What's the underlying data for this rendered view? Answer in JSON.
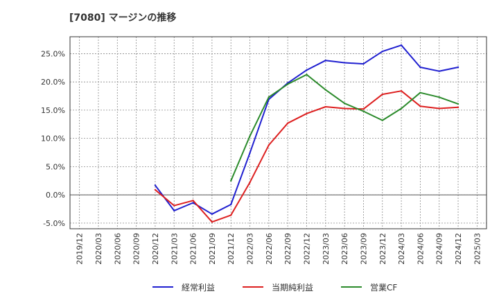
{
  "title": "[7080]  マージンの推移",
  "chart_data": {
    "type": "line",
    "title": "[7080]  マージンの推移",
    "x": [
      "2019/12",
      "2020/03",
      "2020/06",
      "2020/09",
      "2020/12",
      "2021/03",
      "2021/06",
      "2021/09",
      "2021/12",
      "2022/03",
      "2022/06",
      "2022/09",
      "2022/12",
      "2023/03",
      "2023/06",
      "2023/09",
      "2023/12",
      "2024/03",
      "2024/06",
      "2024/09",
      "2024/12",
      "2025/03"
    ],
    "yticks": [
      "-5.0%",
      "0.0%",
      "5.0%",
      "10.0%",
      "15.0%",
      "20.0%",
      "25.0%"
    ],
    "ylim": [
      -6,
      28
    ],
    "grid": true,
    "legend_position": "bottom",
    "series": [
      {
        "name": "経常利益",
        "color": "#1f1fd0",
        "values": [
          null,
          null,
          null,
          null,
          1.7,
          -2.8,
          -1.4,
          -3.4,
          -1.7,
          7.4,
          16.9,
          19.8,
          22.1,
          23.8,
          23.4,
          23.2,
          25.4,
          26.5,
          22.6,
          21.9,
          22.6,
          null
        ]
      },
      {
        "name": "当期純利益",
        "color": "#dd1f1f",
        "values": [
          null,
          null,
          null,
          null,
          0.9,
          -1.9,
          -1.0,
          -4.8,
          -3.6,
          2.2,
          8.8,
          12.7,
          14.4,
          15.6,
          15.3,
          15.2,
          17.8,
          18.4,
          15.7,
          15.3,
          15.5,
          null
        ]
      },
      {
        "name": "営業CF",
        "color": "#2a8a2a",
        "values": [
          null,
          null,
          null,
          null,
          null,
          null,
          null,
          null,
          2.5,
          10.4,
          17.3,
          19.6,
          21.3,
          18.6,
          16.2,
          14.8,
          13.2,
          15.3,
          18.1,
          17.3,
          16.1,
          null
        ]
      }
    ]
  }
}
